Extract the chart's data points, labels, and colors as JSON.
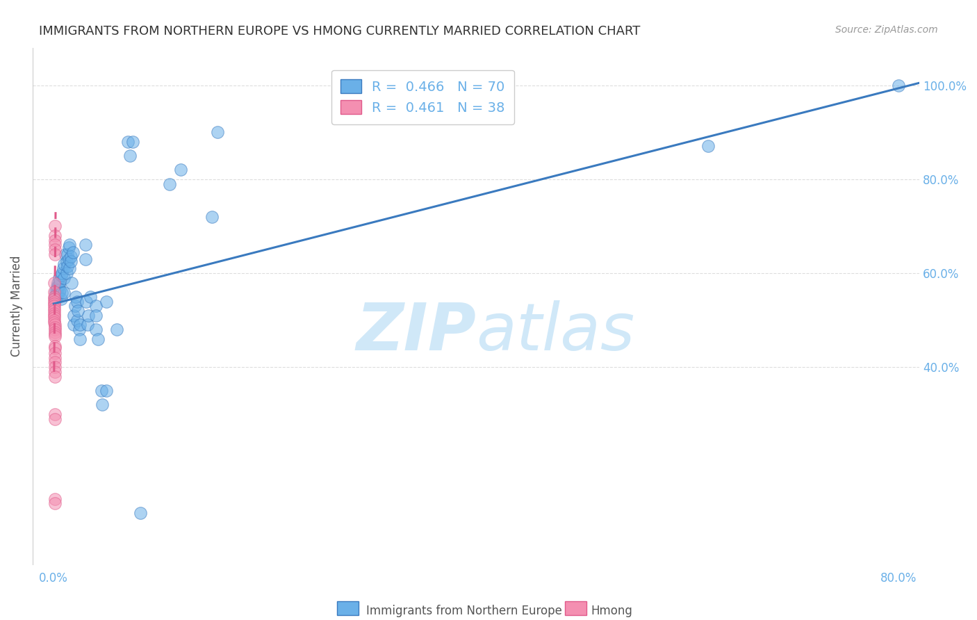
{
  "title": "IMMIGRANTS FROM NORTHERN EUROPE VS HMONG CURRENTLY MARRIED CORRELATION CHART",
  "source": "Source: ZipAtlas.com",
  "ylabel": "Currently Married",
  "x_label_bottom": "Immigrants from Northern Europe",
  "legend_label2": "Hmong",
  "r_blue": 0.466,
  "n_blue": 70,
  "r_pink": 0.461,
  "n_pink": 38,
  "blue_color": "#6ab0e8",
  "pink_color": "#f48fb1",
  "line_blue": "#3a7abf",
  "line_pink": "#e05a8a",
  "title_color": "#333333",
  "axis_color": "#6ab0e8",
  "watermark_color": "#d0e8f8",
  "blue_scatter": [
    [
      0.001,
      0.547
    ],
    [
      0.002,
      0.551
    ],
    [
      0.002,
      0.562
    ],
    [
      0.003,
      0.558
    ],
    [
      0.003,
      0.572
    ],
    [
      0.003,
      0.565
    ],
    [
      0.004,
      0.553
    ],
    [
      0.004,
      0.57
    ],
    [
      0.004,
      0.58
    ],
    [
      0.005,
      0.56
    ],
    [
      0.005,
      0.575
    ],
    [
      0.005,
      0.59
    ],
    [
      0.006,
      0.565
    ],
    [
      0.006,
      0.582
    ],
    [
      0.007,
      0.545
    ],
    [
      0.007,
      0.595
    ],
    [
      0.008,
      0.558
    ],
    [
      0.008,
      0.6
    ],
    [
      0.009,
      0.61
    ],
    [
      0.01,
      0.59
    ],
    [
      0.01,
      0.62
    ],
    [
      0.01,
      0.558
    ],
    [
      0.011,
      0.64
    ],
    [
      0.012,
      0.625
    ],
    [
      0.012,
      0.6
    ],
    [
      0.013,
      0.615
    ],
    [
      0.013,
      0.64
    ],
    [
      0.014,
      0.655
    ],
    [
      0.014,
      0.63
    ],
    [
      0.015,
      0.61
    ],
    [
      0.015,
      0.66
    ],
    [
      0.016,
      0.635
    ],
    [
      0.016,
      0.625
    ],
    [
      0.017,
      0.58
    ],
    [
      0.018,
      0.645
    ],
    [
      0.019,
      0.49
    ],
    [
      0.019,
      0.51
    ],
    [
      0.02,
      0.53
    ],
    [
      0.021,
      0.55
    ],
    [
      0.022,
      0.5
    ],
    [
      0.022,
      0.54
    ],
    [
      0.023,
      0.52
    ],
    [
      0.024,
      0.48
    ],
    [
      0.025,
      0.46
    ],
    [
      0.025,
      0.49
    ],
    [
      0.03,
      0.63
    ],
    [
      0.03,
      0.66
    ],
    [
      0.031,
      0.54
    ],
    [
      0.032,
      0.49
    ],
    [
      0.033,
      0.51
    ],
    [
      0.035,
      0.55
    ],
    [
      0.04,
      0.53
    ],
    [
      0.04,
      0.51
    ],
    [
      0.04,
      0.48
    ],
    [
      0.042,
      0.46
    ],
    [
      0.045,
      0.35
    ],
    [
      0.046,
      0.32
    ],
    [
      0.05,
      0.54
    ],
    [
      0.05,
      0.35
    ],
    [
      0.06,
      0.48
    ],
    [
      0.07,
      0.88
    ],
    [
      0.072,
      0.85
    ],
    [
      0.075,
      0.88
    ],
    [
      0.082,
      0.09
    ],
    [
      0.11,
      0.79
    ],
    [
      0.12,
      0.82
    ],
    [
      0.15,
      0.72
    ],
    [
      0.155,
      0.9
    ],
    [
      0.62,
      0.87
    ],
    [
      0.8,
      1.0
    ]
  ],
  "pink_scatter": [
    [
      0.0005,
      0.58
    ],
    [
      0.0005,
      0.56
    ],
    [
      0.0005,
      0.55
    ],
    [
      0.0005,
      0.545
    ],
    [
      0.0005,
      0.54
    ],
    [
      0.0006,
      0.535
    ],
    [
      0.0006,
      0.53
    ],
    [
      0.0006,
      0.525
    ],
    [
      0.0007,
      0.52
    ],
    [
      0.0007,
      0.515
    ],
    [
      0.0007,
      0.51
    ],
    [
      0.0008,
      0.505
    ],
    [
      0.0008,
      0.5
    ],
    [
      0.0008,
      0.495
    ],
    [
      0.0009,
      0.49
    ],
    [
      0.0009,
      0.485
    ],
    [
      0.0009,
      0.48
    ],
    [
      0.001,
      0.475
    ],
    [
      0.001,
      0.47
    ],
    [
      0.001,
      0.465
    ],
    [
      0.001,
      0.7
    ],
    [
      0.001,
      0.68
    ],
    [
      0.001,
      0.67
    ],
    [
      0.001,
      0.66
    ],
    [
      0.001,
      0.65
    ],
    [
      0.001,
      0.64
    ],
    [
      0.001,
      0.445
    ],
    [
      0.001,
      0.44
    ],
    [
      0.001,
      0.43
    ],
    [
      0.001,
      0.42
    ],
    [
      0.001,
      0.41
    ],
    [
      0.001,
      0.4
    ],
    [
      0.001,
      0.39
    ],
    [
      0.001,
      0.38
    ],
    [
      0.001,
      0.3
    ],
    [
      0.001,
      0.29
    ],
    [
      0.001,
      0.12
    ],
    [
      0.001,
      0.11
    ]
  ],
  "xlim": [
    -0.02,
    0.82
  ],
  "ylim": [
    -0.02,
    1.08
  ],
  "xticks": [
    0.0,
    0.1,
    0.2,
    0.3,
    0.4,
    0.5,
    0.6,
    0.7,
    0.8
  ],
  "yticks": [
    0.4,
    0.6,
    0.8,
    1.0
  ],
  "ytick_labels": [
    "40.0%",
    "60.0%",
    "80.0%",
    "100.0%"
  ],
  "xtick_labels": [
    "0.0%",
    "",
    "",
    "",
    "",
    "",
    "",
    "",
    "80.0%"
  ],
  "grid_color": "#dddddd",
  "background": "#ffffff"
}
